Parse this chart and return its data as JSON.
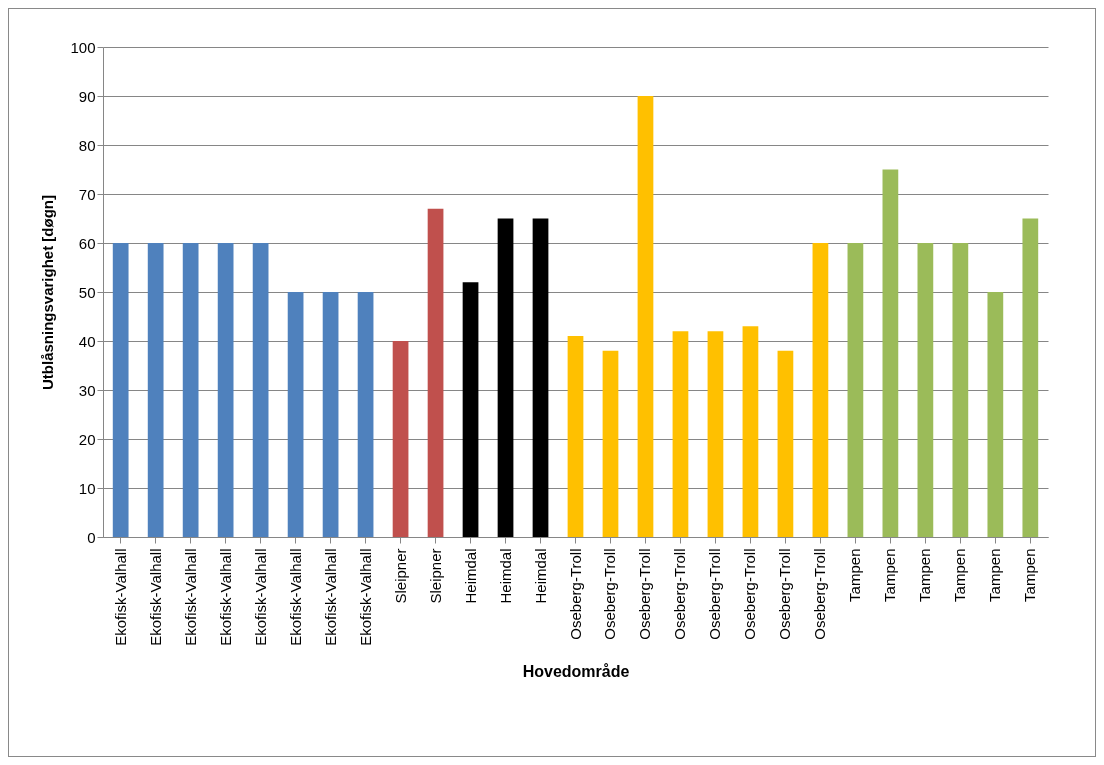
{
  "chart_data": {
    "type": "bar",
    "xlabel": "Hovedområde",
    "ylabel": "Utblåsningsvarighet  [døgn]",
    "categories": [
      "Ekofisk-Valhall",
      "Ekofisk-Valhall",
      "Ekofisk-Valhall",
      "Ekofisk-Valhall",
      "Ekofisk-Valhall",
      "Ekofisk-Valhall",
      "Ekofisk-Valhall",
      "Ekofisk-Valhall",
      "Sleipner",
      "Sleipner",
      "Heimdal",
      "Heimdal",
      "Heimdal",
      "Oseberg-Troll",
      "Oseberg-Troll",
      "Oseberg-Troll",
      "Oseberg-Troll",
      "Oseberg-Troll",
      "Oseberg-Troll",
      "Oseberg-Troll",
      "Oseberg-Troll",
      "Tampen",
      "Tampen",
      "Tampen",
      "Tampen",
      "Tampen",
      "Tampen"
    ],
    "values": [
      60,
      60,
      60,
      60,
      60,
      50,
      50,
      50,
      40,
      67,
      52,
      65,
      65,
      41,
      38,
      90,
      42,
      42,
      43,
      38,
      60,
      60,
      75,
      60,
      60,
      50,
      65
    ],
    "colors": [
      "#4f81bd",
      "#4f81bd",
      "#4f81bd",
      "#4f81bd",
      "#4f81bd",
      "#4f81bd",
      "#4f81bd",
      "#4f81bd",
      "#c0504d",
      "#c0504d",
      "#000000",
      "#000000",
      "#000000",
      "#ffc000",
      "#ffc000",
      "#ffc000",
      "#ffc000",
      "#ffc000",
      "#ffc000",
      "#ffc000",
      "#ffc000",
      "#9bbb59",
      "#9bbb59",
      "#9bbb59",
      "#9bbb59",
      "#9bbb59",
      "#9bbb59"
    ],
    "ylim": [
      0,
      100
    ],
    "yticks": [
      0,
      10,
      20,
      30,
      40,
      50,
      60,
      70,
      80,
      90,
      100
    ],
    "grid": "y"
  }
}
